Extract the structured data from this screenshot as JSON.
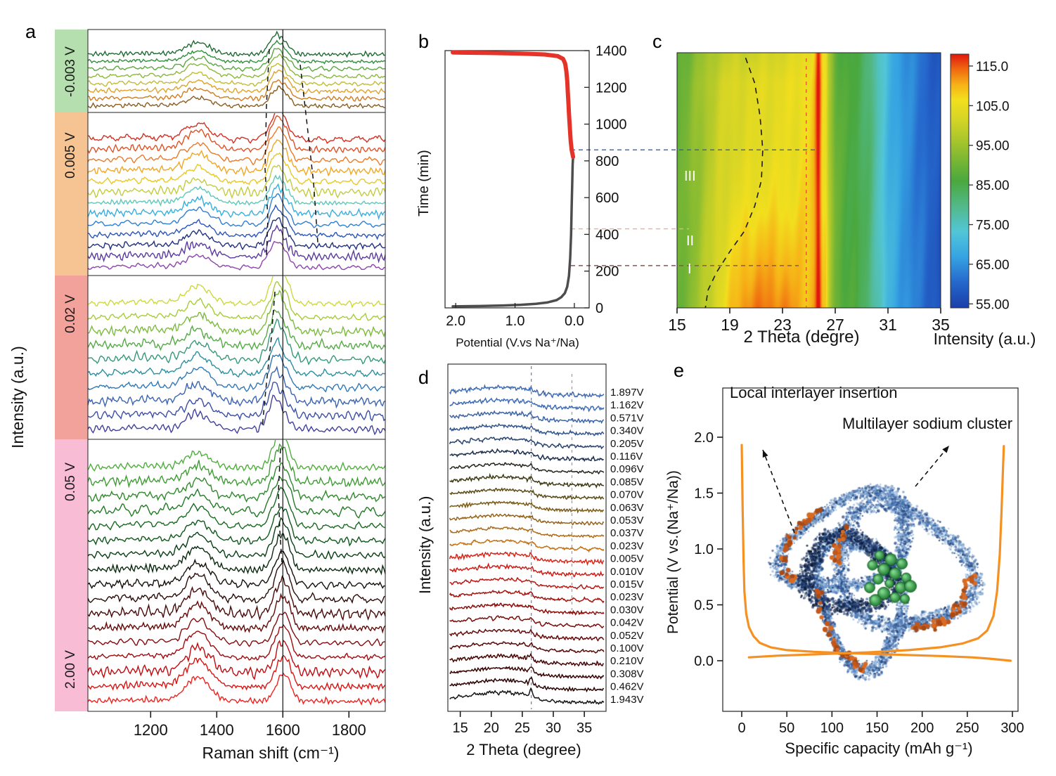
{
  "panels": {
    "a": {
      "letter": "a",
      "xlabel": "Raman shift (cm⁻¹)",
      "ylabel": "Intensity (a.u.)",
      "band_labels": [
        "-0.003 V",
        "0.005 V",
        "0.02 V",
        "0.05 V",
        "2.00 V"
      ]
    },
    "b": {
      "letter": "b",
      "xlabel": "Potential (V.vs Na⁺/Na)",
      "ylabel": "Time  (min)"
    },
    "c": {
      "letter": "c",
      "xlabel": "2 Theta (degre)",
      "colorbar_label": "Intensity (a.u.)",
      "regions": [
        "I",
        "II",
        "III"
      ]
    },
    "d": {
      "letter": "d",
      "xlabel": "2 Theta (degree)",
      "ylabel": "Intensity (a.u.)"
    },
    "e": {
      "letter": "e",
      "xlabel": "Specific capacity (mAh g⁻¹)",
      "ylabel": "Potential (V vs.(Na⁺/Na))",
      "annotations": [
        "Local interlayer insertion",
        "Multilayer sodium cluster"
      ]
    }
  },
  "chart_data": [
    {
      "id": "a",
      "type": "line",
      "kind": "operando-raman-stack",
      "xlabel": "Raman shift (cm⁻¹)",
      "ylabel": "Intensity (a.u.)",
      "xlim": [
        1010,
        1910
      ],
      "xticks": [
        1200,
        1400,
        1600,
        1800
      ],
      "d_band_cm": 1343,
      "g_band_cm": 1585,
      "solid_guide_cm": 1600,
      "groups": [
        {
          "voltage": "-0.003 V",
          "band_color": "#b5dfae",
          "g0": 1581,
          "gslope": 0.6,
          "colors": [
            "#1f6b33",
            "#2f8f3c",
            "#5aa83e",
            "#8cb83c",
            "#c2bc34",
            "#e0a22a",
            "#cf7d22",
            "#8a5c20"
          ]
        },
        {
          "voltage": "0.005 V",
          "band_color": "#f6c493",
          "g0": 1584,
          "gslope": -0.3,
          "colors": [
            "#d62e22",
            "#e05226",
            "#ea7a28",
            "#f0a724",
            "#e8c824",
            "#c2cc3c",
            "#5fc8b8",
            "#38aede",
            "#2f7fd0",
            "#2a55b8",
            "#20307e",
            "#5a3a9e",
            "#8e44ad"
          ]
        },
        {
          "voltage": "0.02 V",
          "band_color": "#f2a29b",
          "g0": 1586,
          "gslope": -1.1,
          "colors": [
            "#cdd93a",
            "#a8cc38",
            "#7dbb3e",
            "#55aa46",
            "#35997a",
            "#2a8fa0",
            "#2f78b8",
            "#3a63b0",
            "#3a4fa8",
            "#40409c"
          ]
        },
        {
          "voltage": "0.05 V - 2.00 V",
          "band_color": "#f8bcd4",
          "g0": 1590,
          "gslope": 0.55,
          "colors": [
            "#4fae3c",
            "#3f9c34",
            "#2f8a2c",
            "#237a26",
            "#176a20",
            "#0e581a",
            "#083f14",
            "#0a2a10",
            "#140f0a",
            "#2a0c08",
            "#470a08",
            "#640908",
            "#820a0c",
            "#a00a0e",
            "#bf0b10",
            "#da1412",
            "#ee2320"
          ]
        }
      ]
    },
    {
      "id": "b",
      "type": "line",
      "kind": "galvanostatic-time-potential",
      "xlabel": "Potential (V.vs Na⁺/Na)",
      "ylabel": "Time  (min)",
      "xlim": [
        2.18,
        -0.25
      ],
      "ylim": [
        0,
        1400
      ],
      "xticks": [
        2.0,
        1.0,
        0.0
      ],
      "xtick_labels": [
        "2.0",
        "1.0",
        "0.0"
      ],
      "yticks": [
        0,
        200,
        400,
        600,
        800,
        1000,
        1200,
        1400
      ],
      "series": [
        {
          "name": "discharge",
          "color": "#4d4d4d",
          "width": 3.5,
          "points": [
            [
              2.05,
              8
            ],
            [
              1.6,
              10
            ],
            [
              1.2,
              13
            ],
            [
              0.9,
              17
            ],
            [
              0.65,
              22
            ],
            [
              0.45,
              30
            ],
            [
              0.3,
              42
            ],
            [
              0.22,
              58
            ],
            [
              0.16,
              80
            ],
            [
              0.12,
              115
            ],
            [
              0.09,
              175
            ],
            [
              0.07,
              270
            ],
            [
              0.055,
              400
            ],
            [
              0.045,
              550
            ],
            [
              0.035,
              690
            ],
            [
              0.028,
              780
            ],
            [
              0.022,
              820
            ]
          ]
        },
        {
          "name": "charge",
          "color": "#e5332a",
          "width": 6,
          "points": [
            [
              0.022,
              822
            ],
            [
              0.045,
              860
            ],
            [
              0.06,
              905
            ],
            [
              0.07,
              950
            ],
            [
              0.08,
              1000
            ],
            [
              0.09,
              1055
            ],
            [
              0.1,
              1115
            ],
            [
              0.11,
              1175
            ],
            [
              0.12,
              1235
            ],
            [
              0.135,
              1290
            ],
            [
              0.155,
              1330
            ],
            [
              0.19,
              1355
            ],
            [
              0.28,
              1370
            ],
            [
              0.5,
              1379
            ],
            [
              0.9,
              1384
            ],
            [
              1.4,
              1387
            ],
            [
              1.9,
              1389
            ],
            [
              2.05,
              1390
            ]
          ]
        }
      ],
      "guide_lines": [
        {
          "time": 860,
          "color": "#3a5fa8",
          "x2": 1162
        },
        {
          "time": 430,
          "color": "#f2a99c",
          "x2": 980
        },
        {
          "time": 230,
          "color": "#8a584e",
          "x2": 1136
        }
      ]
    },
    {
      "id": "c",
      "type": "heatmap",
      "kind": "operando-xrd-contour",
      "xlabel": "2 Theta (degre)",
      "colorbar_label": "Intensity (a.u.)",
      "xlim": [
        15,
        35
      ],
      "xticks": [
        15,
        19,
        23,
        27,
        31,
        35
      ],
      "value_range": [
        54,
        118
      ],
      "colorbar_ticks": [
        [
          "115.0",
          115
        ],
        [
          "105.0",
          105
        ],
        [
          "95.00",
          95
        ],
        [
          "85.00",
          85
        ],
        [
          "75.00",
          75
        ],
        [
          "65.00",
          65
        ],
        [
          "55.00",
          55
        ]
      ],
      "regions": [
        "I",
        "II",
        "III"
      ],
      "colormap": [
        [
          0,
          "#1a3fa8"
        ],
        [
          0.1,
          "#2567cc"
        ],
        [
          0.2,
          "#35a3e2"
        ],
        [
          0.3,
          "#52c6d8"
        ],
        [
          0.4,
          "#52b98a"
        ],
        [
          0.5,
          "#4aa83e"
        ],
        [
          0.58,
          "#78b634"
        ],
        [
          0.66,
          "#a8c62c"
        ],
        [
          0.74,
          "#d4d426"
        ],
        [
          0.82,
          "#f2df1e"
        ],
        [
          0.88,
          "#f6b117"
        ],
        [
          0.94,
          "#ef6a10"
        ],
        [
          1.0,
          "#e0170f"
        ]
      ],
      "profile": [
        [
          15,
          89
        ],
        [
          16,
          92
        ],
        [
          17,
          96
        ],
        [
          18,
          100
        ],
        [
          19,
          102
        ],
        [
          20,
          103
        ],
        [
          21,
          103.5
        ],
        [
          22,
          104
        ],
        [
          23,
          104.5
        ],
        [
          24,
          105
        ],
        [
          25,
          107
        ],
        [
          25.7,
          110
        ],
        [
          26.1,
          105
        ],
        [
          26.5,
          97
        ],
        [
          27,
          90
        ],
        [
          27.5,
          87
        ],
        [
          28.5,
          85.5
        ],
        [
          29.5,
          82
        ],
        [
          30.2,
          76
        ],
        [
          31,
          70
        ],
        [
          32,
          66
        ],
        [
          33,
          63
        ],
        [
          34,
          60
        ],
        [
          35,
          57.5
        ]
      ],
      "dashed_curve": [
        [
          20.2,
          0.02
        ],
        [
          20.9,
          0.12
        ],
        [
          21.3,
          0.25
        ],
        [
          21.5,
          0.38
        ],
        [
          21.4,
          0.5
        ],
        [
          20.9,
          0.6
        ],
        [
          20.1,
          0.7
        ],
        [
          19.0,
          0.78
        ],
        [
          18.0,
          0.86
        ],
        [
          17.35,
          0.93
        ],
        [
          17.15,
          1.0
        ]
      ],
      "red_dashed_2theta": 24.8
    },
    {
      "id": "d",
      "type": "line",
      "kind": "ex-situ-xrd-stack",
      "xlabel": "2 Theta (degree)",
      "ylabel": "Intensity (a.u.)",
      "xlim": [
        13,
        38.5
      ],
      "xticks": [
        15,
        20,
        25,
        30,
        35
      ],
      "dashed_guides_2theta": [
        26.45,
        33
      ],
      "curves": [
        {
          "label": "1.897V",
          "color": "#3f6cb4"
        },
        {
          "label": "1.162V",
          "color": "#3f6cb4"
        },
        {
          "label": "0.571V",
          "color": "#3a63a8"
        },
        {
          "label": "0.340V",
          "color": "#31548f"
        },
        {
          "label": "0.205V",
          "color": "#27436f"
        },
        {
          "label": "0.116V",
          "color": "#1d3050"
        },
        {
          "label": "0.096V",
          "color": "#23241c"
        },
        {
          "label": "0.085V",
          "color": "#3f3a16"
        },
        {
          "label": "0.070V",
          "color": "#5c4a14"
        },
        {
          "label": "0.063V",
          "color": "#7a5a14"
        },
        {
          "label": "0.053V",
          "color": "#96621a"
        },
        {
          "label": "0.037V",
          "color": "#ae6a16"
        },
        {
          "label": "0.023V",
          "color": "#c47114"
        },
        {
          "label": "0.005V",
          "color": "#d8251a"
        },
        {
          "label": "0.010V",
          "color": "#cb1d15"
        },
        {
          "label": "0.015V",
          "color": "#bd1712"
        },
        {
          "label": "0.023V",
          "color": "#a5120e"
        },
        {
          "label": "0.030V",
          "color": "#8e0e0b"
        },
        {
          "label": "0.042V",
          "color": "#7a0b09"
        },
        {
          "label": "0.052V",
          "color": "#660907"
        },
        {
          "label": "0.100V",
          "color": "#560705"
        },
        {
          "label": "0.210V",
          "color": "#460504"
        },
        {
          "label": "0.308V",
          "color": "#370302"
        },
        {
          "label": "0.462V",
          "color": "#2a0201"
        },
        {
          "label": "1.943V",
          "color": "#151515"
        }
      ]
    },
    {
      "id": "e",
      "type": "line",
      "kind": "charge-discharge-profile",
      "xlabel": "Specific capacity (mAh g⁻¹)",
      "ylabel": "Potential (V vs.(Na⁺/Na))",
      "xlim": [
        -25,
        320
      ],
      "ylim": [
        -0.25,
        2.45
      ],
      "xticks": [
        0,
        50,
        100,
        150,
        200,
        250,
        300
      ],
      "yticks": [
        [
          "2.0",
          2.0
        ],
        [
          "1.5",
          1.5
        ],
        [
          "1.0",
          1.0
        ],
        [
          "0.5",
          0.5
        ],
        [
          "0.0",
          0.0
        ]
      ],
      "series": [
        {
          "name": "discharge",
          "color": "#f59122",
          "width": 3.2,
          "points": [
            [
              0,
              1.93
            ],
            [
              1,
              1.35
            ],
            [
              2,
              0.9
            ],
            [
              3,
              0.62
            ],
            [
              5,
              0.42
            ],
            [
              8,
              0.3
            ],
            [
              13,
              0.22
            ],
            [
              20,
              0.16
            ],
            [
              32,
              0.12
            ],
            [
              50,
              0.095
            ],
            [
              80,
              0.08
            ],
            [
              120,
              0.067
            ],
            [
              170,
              0.055
            ],
            [
              220,
              0.042
            ],
            [
              255,
              0.03
            ],
            [
              275,
              0.018
            ],
            [
              290,
              0.006
            ],
            [
              298,
              0.0
            ]
          ]
        },
        {
          "name": "charge",
          "color": "#f59122",
          "width": 3.2,
          "points": [
            [
              8,
              0.03
            ],
            [
              40,
              0.045
            ],
            [
              90,
              0.06
            ],
            [
              140,
              0.075
            ],
            [
              185,
              0.095
            ],
            [
              220,
              0.12
            ],
            [
              245,
              0.155
            ],
            [
              262,
              0.2
            ],
            [
              272,
              0.27
            ],
            [
              279,
              0.4
            ],
            [
              283,
              0.62
            ],
            [
              286,
              0.95
            ],
            [
              288,
              1.35
            ],
            [
              289.5,
              1.7
            ],
            [
              290.5,
              1.92
            ]
          ]
        }
      ],
      "annotations": [
        "Local interlayer insertion",
        "Multilayer sodium cluster"
      ]
    }
  ]
}
